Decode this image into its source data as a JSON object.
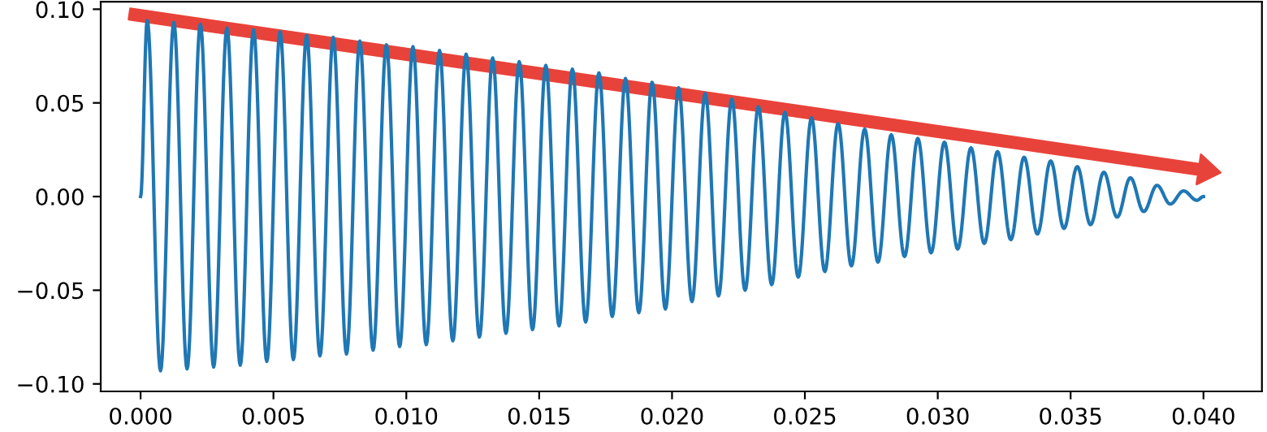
{
  "chart_data": {
    "type": "line",
    "xlim": [
      -0.0015,
      0.0422
    ],
    "ylim": [
      -0.104,
      0.104
    ],
    "xticks": [
      {
        "value": 0,
        "label": "0.000"
      },
      {
        "value": 0.005,
        "label": "0.005"
      },
      {
        "value": 0.01,
        "label": "0.010"
      },
      {
        "value": 0.015,
        "label": "0.015"
      },
      {
        "value": 0.02,
        "label": "0.020"
      },
      {
        "value": 0.025,
        "label": "0.025"
      },
      {
        "value": 0.03,
        "label": "0.030"
      },
      {
        "value": 0.035,
        "label": "0.035"
      },
      {
        "value": 0.04,
        "label": "0.040"
      }
    ],
    "yticks": [
      {
        "value": -0.1,
        "label": "−0.10"
      },
      {
        "value": -0.05,
        "label": "−0.05"
      },
      {
        "value": 0,
        "label": "0.00"
      },
      {
        "value": 0.05,
        "label": "0.05"
      },
      {
        "value": 0.1,
        "label": "0.10"
      }
    ],
    "grid": false,
    "marker": "none",
    "line_style": "solid",
    "series": [
      {
        "color": "#1f77b4",
        "x": [
          0,
          0.00025,
          0.00075,
          0.00125,
          0.00175,
          0.00225,
          0.00275,
          0.00325,
          0.00375,
          0.00425,
          0.00475,
          0.00525,
          0.00575,
          0.00625,
          0.00675,
          0.00725,
          0.00775,
          0.00825,
          0.00875,
          0.00925,
          0.00975,
          0.01025,
          0.01075,
          0.01125,
          0.01175,
          0.01225,
          0.01275,
          0.01325,
          0.01375,
          0.01425,
          0.01475,
          0.01525,
          0.01575,
          0.01625,
          0.01675,
          0.01725,
          0.01775,
          0.01825,
          0.01875,
          0.01925,
          0.01975,
          0.02025,
          0.02075,
          0.02125,
          0.02175,
          0.02225,
          0.02275,
          0.02325,
          0.02375,
          0.02425,
          0.02475,
          0.02525,
          0.02575,
          0.02625,
          0.02675,
          0.02725,
          0.02775,
          0.02825,
          0.02875,
          0.02925,
          0.02975,
          0.03025,
          0.03075,
          0.03125,
          0.03175,
          0.03225,
          0.03275,
          0.03325,
          0.03375,
          0.03425,
          0.03475,
          0.03525,
          0.03575,
          0.03625,
          0.03675,
          0.03725,
          0.03775,
          0.03825,
          0.03875,
          0.03925,
          0.03975,
          0.04
        ],
        "values": [
          0,
          0.094,
          -0.093,
          0.093,
          -0.092,
          0.092,
          -0.091,
          0.09,
          -0.09,
          0.089,
          -0.088,
          0.088,
          -0.087,
          0.086,
          -0.085,
          0.085,
          -0.084,
          0.083,
          -0.082,
          0.081,
          -0.08,
          0.08,
          -0.079,
          0.078,
          -0.077,
          0.076,
          -0.075,
          0.074,
          -0.073,
          0.072,
          -0.071,
          0.07,
          -0.069,
          0.068,
          -0.067,
          0.066,
          -0.064,
          0.063,
          -0.062,
          0.061,
          -0.06,
          0.058,
          -0.056,
          0.055,
          -0.053,
          0.052,
          -0.05,
          0.048,
          -0.047,
          0.045,
          -0.043,
          0.042,
          -0.04,
          0.039,
          -0.037,
          0.036,
          -0.035,
          0.033,
          -0.032,
          0.031,
          -0.03,
          0.029,
          -0.028,
          0.026,
          -0.025,
          0.024,
          -0.023,
          0.021,
          -0.02,
          0.019,
          -0.017,
          0.016,
          -0.015,
          0.013,
          -0.011,
          0.01,
          -0.008,
          0.006,
          -0.004,
          0.003,
          -0.002,
          0.0
        ]
      }
    ]
  }
}
